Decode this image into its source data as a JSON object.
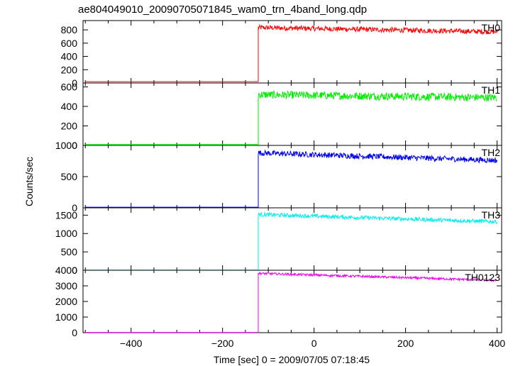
{
  "chart_data": {
    "type": "line",
    "title": "ae804049010_20090705071845_wam0_trn_4band_long.qdp",
    "xlabel": "Time [sec] 0 = 2009/07/05 07:18:45",
    "ylabel": "Counts/sec",
    "xlim": [
      -505,
      410
    ],
    "xticks": [
      -400,
      -200,
      0,
      200,
      400
    ],
    "xtick_labels": [
      "−400",
      "−200",
      "0",
      "200",
      "400"
    ],
    "onset_x": -122,
    "panels": [
      {
        "name": "TH0",
        "color": "#ff0000",
        "ylim": [
          0,
          940
        ],
        "yticks": [
          0,
          200,
          400,
          600,
          800
        ],
        "pre_level": 20,
        "post_start": 835,
        "post_end": 770,
        "noise": 38
      },
      {
        "name": "TH1",
        "color": "#00ee00",
        "ylim": [
          0,
          640
        ],
        "yticks": [
          0,
          200,
          400,
          600
        ],
        "pre_level": 10,
        "post_start": 520,
        "post_end": 490,
        "noise": 40
      },
      {
        "name": "TH2",
        "color": "#0000ee",
        "ylim": [
          0,
          1000
        ],
        "yticks": [
          0,
          500,
          1000
        ],
        "pre_level": 10,
        "post_start": 880,
        "post_end": 760,
        "noise": 45
      },
      {
        "name": "TH3",
        "color": "#00eeee",
        "ylim": [
          0,
          1700
        ],
        "yticks": [
          0,
          500,
          1000,
          1500
        ],
        "pre_level": 5,
        "post_start": 1520,
        "post_end": 1320,
        "noise": 55
      },
      {
        "name": "TH0123",
        "color": "#ee00ee",
        "ylim": [
          0,
          4000
        ],
        "yticks": [
          0,
          1000,
          2000,
          3000,
          4000
        ],
        "pre_level": 20,
        "post_start": 3800,
        "post_end": 3350,
        "noise": 75
      }
    ]
  }
}
